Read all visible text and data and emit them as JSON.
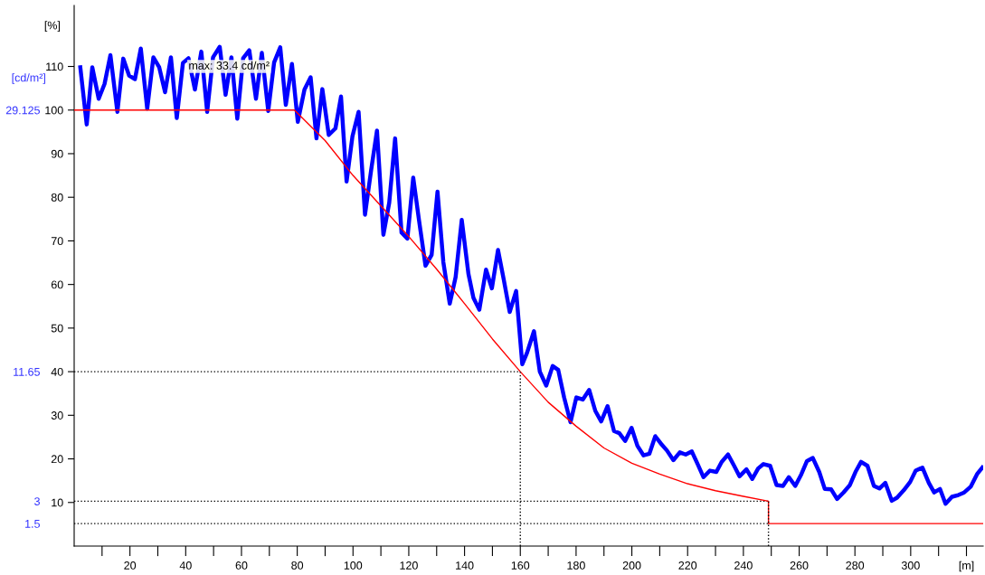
{
  "chart_data": {
    "type": "line",
    "ylabel": "[%]",
    "y2label": "[cd/m²]",
    "xlim": [
      0,
      326
    ],
    "ylim": [
      0,
      124
    ],
    "y2lim": [
      0,
      36.115
    ],
    "xticks": [
      {
        "value": 10,
        "label": null
      },
      20,
      {
        "value": 30,
        "label": null
      },
      40,
      {
        "value": 50,
        "label": null
      },
      60,
      {
        "value": 70,
        "label": null
      },
      80,
      {
        "value": 90,
        "label": null
      },
      100,
      {
        "value": 110,
        "label": null
      },
      120,
      {
        "value": 130,
        "label": null
      },
      140,
      {
        "value": 150,
        "label": null
      },
      160,
      {
        "value": 170,
        "label": null
      },
      180,
      {
        "value": 190,
        "label": null
      },
      200,
      {
        "value": 210,
        "label": null
      },
      220,
      {
        "value": 230,
        "label": null
      },
      240,
      {
        "value": 250,
        "label": null
      },
      260,
      {
        "value": 270,
        "label": null
      },
      280,
      {
        "value": 290,
        "label": null
      },
      300,
      {
        "value": 310,
        "label": null
      },
      {
        "value": 320,
        "label": "[m]"
      }
    ],
    "yticks": [
      10,
      20,
      30,
      40,
      50,
      60,
      70,
      80,
      90,
      100,
      110
    ],
    "y2ticks": [
      1.5,
      3,
      11.65,
      29.125
    ],
    "grid": false,
    "marker": "none",
    "line_style": "solid",
    "series": [
      {
        "color": "#0000ff",
        "x": [
          2.2,
          4.5,
          6.5,
          8.8,
          10.9,
          13,
          15.5,
          17.6,
          19.7,
          21.8,
          23.9,
          26.2,
          28.4,
          30.5,
          32.6,
          34.7,
          36.8,
          39,
          41,
          43.3,
          45.6,
          47.7,
          49.8,
          52.2,
          54.3,
          56.4,
          58.5,
          60.6,
          62.8,
          65.2,
          67.3,
          69.6,
          71.7,
          73.9,
          75.9,
          78.1,
          80.2,
          82.6,
          84.8,
          86.9,
          89,
          91.3,
          93.7,
          95.7,
          97.7,
          99.8,
          102,
          104.3,
          106.5,
          108.6,
          110.9,
          113,
          115.1,
          117.4,
          119.5,
          121.6,
          123.7,
          126,
          128.2,
          130.3,
          132.4,
          134.7,
          136.8,
          139,
          141.4,
          143.2,
          145.3,
          147.7,
          149.8,
          152,
          154.1,
          156.2,
          158.5,
          160.7,
          162.4,
          164.9,
          167,
          169.3,
          171.6,
          173.6,
          175.7,
          178,
          180.1,
          182.4,
          184.7,
          186.9,
          189,
          191.3,
          193.6,
          195.5,
          197.6,
          199.9,
          202,
          204.2,
          206.3,
          208.4,
          210.3,
          212.6,
          214.9,
          217.2,
          219.3,
          221.5,
          223.6,
          225.7,
          228,
          230.3,
          232.2,
          234.5,
          236.6,
          238.6,
          241.1,
          243.2,
          245.3,
          247.2,
          249.6,
          251.9,
          254.2,
          256.3,
          258.6,
          260.8,
          262.8,
          264.9,
          267.2,
          269.2,
          271.5,
          273.6,
          275.9,
          278.2,
          280.2,
          282.2,
          284.5,
          286.8,
          288.8,
          290.9,
          293.2,
          295.1,
          297.5,
          299.8,
          301.8,
          304.2,
          306.5,
          308.4,
          310.5,
          312.5,
          314.8,
          317.1,
          319.2,
          321.5,
          323.8,
          325.7
        ],
        "values": [
          109.8,
          96.7,
          109.8,
          102.6,
          106,
          112.6,
          99.6,
          111.8,
          107.9,
          107.1,
          114.1,
          100.3,
          112.1,
          109.8,
          104.1,
          112.1,
          98.2,
          110.8,
          111.9,
          104.7,
          113.4,
          99.6,
          112.1,
          114.5,
          103.5,
          112.1,
          98,
          111.9,
          113.7,
          102.6,
          113.1,
          99.8,
          110.9,
          114.4,
          101.2,
          110.6,
          97.3,
          104.7,
          107.5,
          93.5,
          104.8,
          94.3,
          95.8,
          103.1,
          83.6,
          94,
          99.6,
          76,
          86.2,
          95.3,
          71.4,
          78.8,
          93.5,
          71.9,
          70.5,
          84.5,
          74.6,
          64.3,
          66.8,
          81.3,
          65.1,
          55.6,
          61.7,
          74.8,
          62.4,
          56.9,
          54.2,
          63.4,
          59.1,
          67.9,
          61,
          53.7,
          58.5,
          41.7,
          44.3,
          49.3,
          40,
          36.8,
          41.3,
          40.4,
          34.1,
          28.4,
          34.1,
          33.6,
          35.8,
          31,
          28.6,
          32.1,
          26.4,
          25.9,
          24.1,
          27.1,
          23,
          20.8,
          21.2,
          25.2,
          23.6,
          21.9,
          19.7,
          21.5,
          21,
          21.7,
          18.8,
          15.8,
          17.3,
          17,
          19.3,
          21,
          18.5,
          16,
          17.6,
          15.4,
          17.8,
          18.8,
          18.4,
          14,
          13.8,
          15.8,
          13.8,
          16.5,
          19.5,
          20.2,
          17,
          13.1,
          13,
          10.8,
          12.3,
          14,
          17,
          19.3,
          18.4,
          13.8,
          13.2,
          14.5,
          10.4,
          11.1,
          12.8,
          14.7,
          17.3,
          18,
          14.5,
          12.3,
          13.1,
          9.7,
          11.3,
          11.7,
          12.3,
          13.6,
          16.5,
          18
        ]
      },
      {
        "color": "#ff0000",
        "x": [
          0,
          79,
          90,
          100,
          110,
          120,
          130,
          140,
          150,
          160,
          170,
          180,
          190,
          200,
          210,
          220,
          230,
          240,
          249,
          249,
          326
        ],
        "values": [
          100,
          100,
          93,
          85,
          78,
          71,
          63.5,
          55.6,
          47.5,
          40,
          33,
          27.5,
          22.5,
          19,
          16.5,
          14.3,
          12.7,
          11.4,
          10.3,
          5.15,
          5.15
        ]
      }
    ],
    "ref_lines": [
      {
        "axis": "y2",
        "value": 11.65,
        "line_style": "dotted",
        "color": "#000000"
      },
      {
        "axis": "y2",
        "value": 3,
        "line_style": "dotted",
        "color": "#000000"
      },
      {
        "axis": "y2",
        "value": 1.5,
        "line_style": "dotted",
        "color": "#000000"
      },
      {
        "axis": "x",
        "value": 160,
        "line_style": "dotted",
        "color": "#000000"
      },
      {
        "axis": "x",
        "value": 249,
        "line_style": "dotted",
        "color": "#000000"
      }
    ],
    "annotations": [
      {
        "text": "max: 33.4 cd/m²",
        "x": 41,
        "y": 110
      }
    ]
  }
}
